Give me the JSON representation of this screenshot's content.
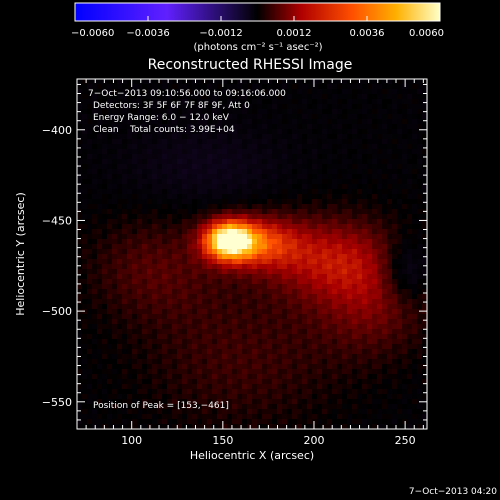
{
  "chart_data": {
    "type": "heatmap",
    "title": "Reconstructed RHESSI Image",
    "xlabel": "Heliocentric X (arcsec)",
    "ylabel": "Heliocentric Y (arcsec)",
    "xlim": [
      70,
      262
    ],
    "ylim": [
      -565,
      -372
    ],
    "x_ticks": [
      100,
      150,
      200,
      250
    ],
    "y_ticks": [
      -400,
      -450,
      -500,
      -550
    ],
    "colorbar": {
      "range": [
        -0.006,
        0.006
      ],
      "tick_labels": [
        "−0.0060",
        "−0.0036",
        "−0.0012",
        "0.0012",
        "0.0036",
        "0.0060"
      ],
      "tick_values": [
        -0.006,
        -0.0036,
        -0.0012,
        0.0012,
        0.0036,
        0.006
      ],
      "units": "(photons cm⁻² s⁻¹ asec⁻²)",
      "colors": [
        "#0000ff",
        "#6020ff",
        "#000000",
        "#b00000",
        "#ff5000",
        "#ffb000",
        "#ffffc8"
      ]
    },
    "annotations": {
      "time_range": "7−Oct−2013 09:10:56.000 to 09:16:06.000",
      "detectors": "Detectors: 3F 5F 6F 7F 8F 9F, Att 0",
      "energy": "Energy Range: 6.0 − 12.0 keV",
      "clean": "Clean    Total counts: 3.99E+04",
      "peak": "Position of Peak = [153,−461]"
    },
    "peak_position": [
      153,
      -461
    ],
    "sources": [
      {
        "x": 153,
        "y": -461,
        "sx": 10,
        "sy": 8,
        "amp": 1.0
      },
      {
        "x": 172,
        "y": -462,
        "sx": 14,
        "sy": 10,
        "amp": 0.42
      },
      {
        "x": 205,
        "y": -470,
        "sx": 24,
        "sy": 16,
        "amp": 0.34
      },
      {
        "x": 232,
        "y": -492,
        "sx": 22,
        "sy": 22,
        "amp": 0.26
      },
      {
        "x": 112,
        "y": -476,
        "sx": 26,
        "sy": 20,
        "amp": 0.18
      },
      {
        "x": 160,
        "y": -525,
        "sx": 40,
        "sy": 30,
        "amp": 0.15
      }
    ],
    "negatives": [
      {
        "x": 250,
        "y": -478,
        "sx": 9,
        "sy": 12,
        "amp": -0.25
      },
      {
        "x": 140,
        "y": -420,
        "sx": 30,
        "sy": 15,
        "amp": -0.12
      }
    ]
  },
  "footer": {
    "timestamp": "7−Oct−2013 04:20"
  }
}
